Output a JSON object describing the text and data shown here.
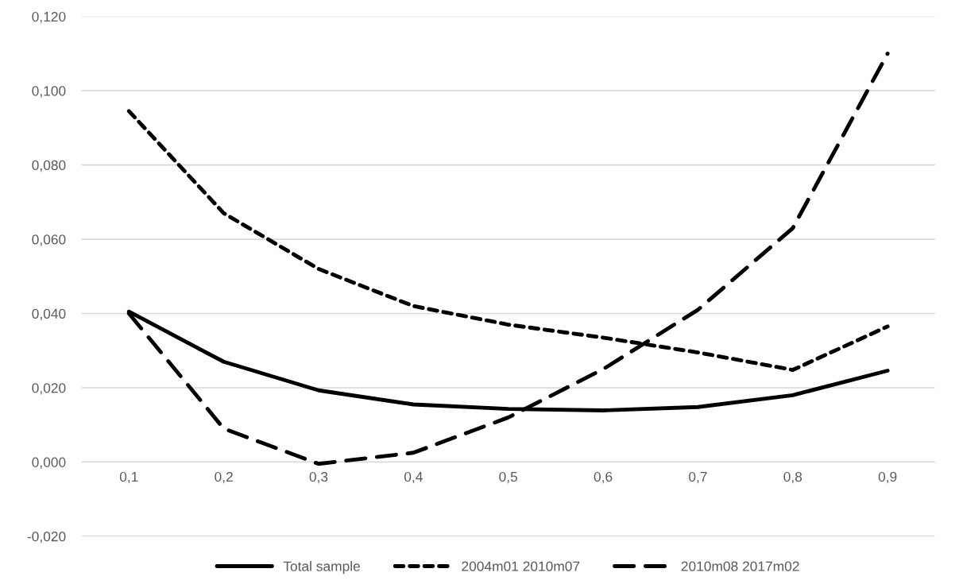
{
  "chart_data": {
    "type": "line",
    "categories": [
      "0,1",
      "0,2",
      "0,3",
      "0,4",
      "0,5",
      "0,6",
      "0,7",
      "0,8",
      "0,9"
    ],
    "series": [
      {
        "name": "Total sample",
        "color": "#000000",
        "line_style": "solid",
        "values": [
          0.0405,
          0.027,
          0.0193,
          0.0155,
          0.0143,
          0.0139,
          0.0148,
          0.018,
          0.0246
        ]
      },
      {
        "name": "2004m01 2010m07",
        "color": "#000000",
        "line_style": "dashed",
        "values": [
          0.0945,
          0.067,
          0.052,
          0.042,
          0.037,
          0.0335,
          0.0295,
          0.0248,
          0.0365
        ]
      },
      {
        "name": "2010m08 2017m02",
        "color": "#000000",
        "line_style": "dashed",
        "values": [
          0.04,
          0.009,
          -0.0005,
          0.0025,
          0.012,
          0.025,
          0.041,
          0.063,
          0.11
        ]
      }
    ],
    "ylim": [
      -0.02,
      0.12
    ],
    "yticks": [
      {
        "value": -0.02,
        "label": "-0,020"
      },
      {
        "value": 0,
        "label": "0,000"
      },
      {
        "value": 0.02,
        "label": "0,020"
      },
      {
        "value": 0.04,
        "label": "0,040"
      },
      {
        "value": 0.06,
        "label": "0,060"
      },
      {
        "value": 0.08,
        "label": "0,080"
      },
      {
        "value": 0.1,
        "label": "0,100"
      },
      {
        "value": 0.12,
        "label": "0,120"
      }
    ],
    "grid": "y",
    "legend": "bottom"
  }
}
